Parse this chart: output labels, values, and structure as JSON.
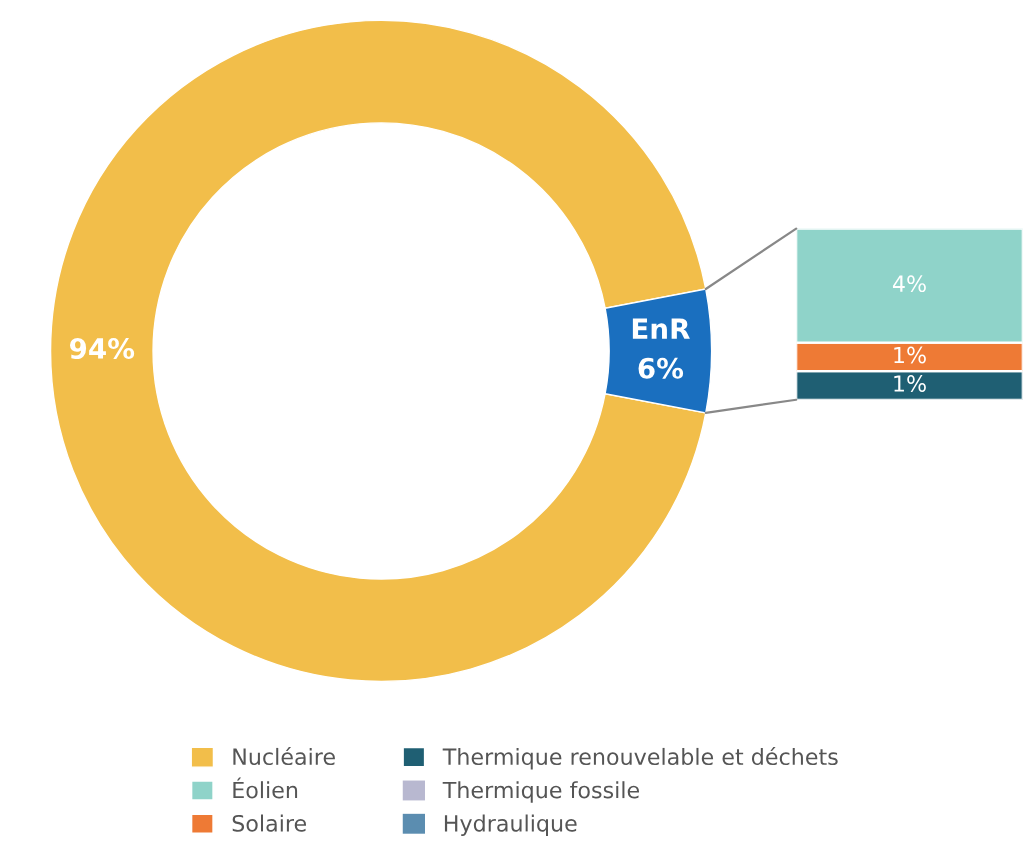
{
  "chart_data": [
    {
      "type": "donut",
      "categories": [
        "Nucléaire",
        null
      ],
      "values": [
        94,
        6
      ],
      "colors": [
        "#f2be4a",
        "#1a6fbf"
      ],
      "value_labels": [
        "94%",
        "EnR\n6%"
      ],
      "legend": "bottom"
    },
    {
      "type": "bar",
      "stacked": true,
      "categories": [
        null
      ],
      "legend": "bottom",
      "series": [
        {
          "name": "Thermique renouvelable et déchets",
          "color": "#1f5f73",
          "values": [
            1
          ],
          "value_labels": [
            "1%"
          ]
        },
        {
          "name": "Solaire",
          "color": "#ee7a35",
          "values": [
            1
          ],
          "value_labels": [
            "1%"
          ]
        },
        {
          "name": "Éolien",
          "color": "#8fd3c9",
          "values": [
            4
          ],
          "value_labels": [
            "4%"
          ]
        },
        {
          "name": "Thermique fossile",
          "color": "#b8b8d0",
          "values": [
            null
          ]
        },
        {
          "name": "Hydraulique",
          "color": "#5b8db0",
          "values": [
            null
          ]
        }
      ]
    }
  ]
}
